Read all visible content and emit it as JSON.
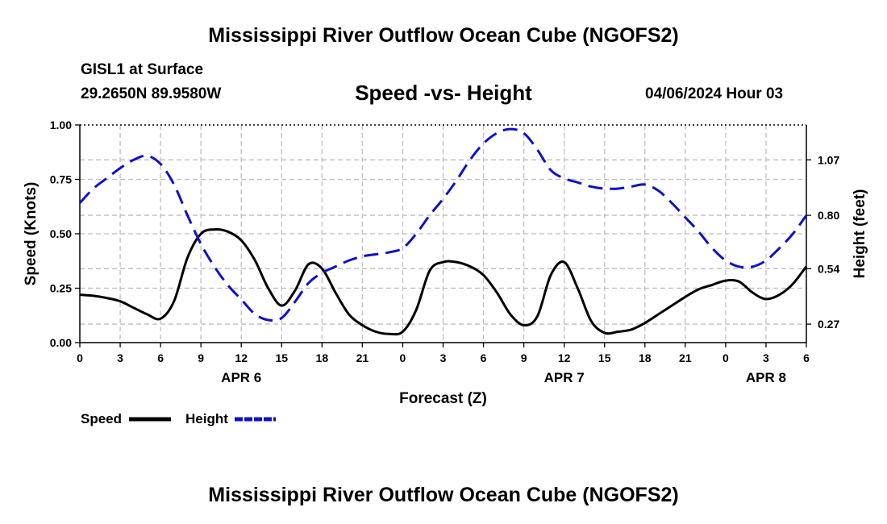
{
  "header": {
    "title": "Mississippi River Outflow Ocean Cube (NGOFS2)",
    "station": "GISL1 at Surface",
    "coordinates": "29.2650N  89.9580W",
    "subtitle": "Speed -vs- Height",
    "datetime": "04/06/2024 Hour 03"
  },
  "footer": {
    "title": "Mississippi River Outflow Ocean Cube (NGOFS2)"
  },
  "chart_data": {
    "type": "line",
    "title": "Speed -vs- Height",
    "xlabel": "Forecast (Z)",
    "ylabel": "Speed (Knots)",
    "y2label": "Height (feet)",
    "xlim": [
      0,
      54
    ],
    "ylim": [
      0,
      1
    ],
    "y2lim": [
      0.18,
      1.24
    ],
    "grid": true,
    "x_ticks": [
      0,
      3,
      6,
      9,
      12,
      15,
      18,
      21,
      24,
      27,
      30,
      33,
      36,
      39,
      42,
      45,
      48,
      51,
      54
    ],
    "x_tick_labels": [
      "0",
      "3",
      "6",
      "9",
      "12",
      "15",
      "18",
      "21",
      "0",
      "3",
      "6",
      "9",
      "12",
      "15",
      "18",
      "21",
      "0",
      "3",
      "6"
    ],
    "date_labels": [
      {
        "x": 12,
        "label": "APR 6"
      },
      {
        "x": 36,
        "label": "APR 7"
      },
      {
        "x": 51,
        "label": "APR 8"
      }
    ],
    "y_ticks": [
      0,
      0.25,
      0.5,
      0.75,
      1.0
    ],
    "y_tick_labels": [
      "0.00",
      "0.25",
      "0.50",
      "0.75",
      "1.00"
    ],
    "y2_ticks": [
      0.27,
      0.54,
      0.8,
      1.07
    ],
    "y2_tick_labels": [
      "0.27",
      "0.54",
      "0.80",
      "1.07"
    ],
    "legend": {
      "position": "bottom-left",
      "speed_label": "Speed",
      "height_label": "Height"
    },
    "series": [
      {
        "name": "Speed",
        "axis": "left",
        "color": "#000000",
        "dash": "solid",
        "x": [
          0,
          1,
          2,
          3,
          4,
          5,
          6,
          7,
          8,
          9,
          10,
          11,
          12,
          13,
          14,
          15,
          16,
          17,
          18,
          19,
          20,
          21,
          22,
          23,
          24,
          25,
          26,
          27,
          28,
          29,
          30,
          31,
          32,
          33,
          34,
          35,
          36,
          37,
          38,
          39,
          40,
          41,
          42,
          43,
          44,
          45,
          46,
          47,
          48,
          49,
          50,
          51,
          52,
          53,
          54
        ],
        "values": [
          0.22,
          0.215,
          0.205,
          0.19,
          0.16,
          0.13,
          0.11,
          0.19,
          0.39,
          0.5,
          0.52,
          0.51,
          0.47,
          0.38,
          0.25,
          0.17,
          0.24,
          0.36,
          0.34,
          0.23,
          0.13,
          0.08,
          0.05,
          0.04,
          0.05,
          0.15,
          0.33,
          0.37,
          0.37,
          0.35,
          0.31,
          0.23,
          0.13,
          0.08,
          0.12,
          0.31,
          0.37,
          0.25,
          0.1,
          0.045,
          0.05,
          0.06,
          0.09,
          0.13,
          0.17,
          0.21,
          0.245,
          0.265,
          0.285,
          0.28,
          0.23,
          0.2,
          0.22,
          0.27,
          0.35
        ]
      },
      {
        "name": "Height",
        "axis": "right",
        "color": "#1010c8",
        "dash": "dashed",
        "x": [
          0,
          1,
          2,
          3,
          4,
          5,
          6,
          7,
          8,
          9,
          10,
          11,
          12,
          13,
          14,
          15,
          16,
          17,
          18,
          19,
          20,
          21,
          22,
          23,
          24,
          25,
          26,
          27,
          28,
          29,
          30,
          31,
          32,
          33,
          34,
          35,
          36,
          37,
          38,
          39,
          40,
          41,
          42,
          43,
          44,
          45,
          46,
          47,
          48,
          49,
          50,
          51,
          52,
          53,
          54
        ],
        "values": [
          0.86,
          0.93,
          0.98,
          1.03,
          1.07,
          1.09,
          1.05,
          0.95,
          0.8,
          0.66,
          0.55,
          0.46,
          0.39,
          0.32,
          0.29,
          0.3,
          0.38,
          0.47,
          0.52,
          0.55,
          0.58,
          0.6,
          0.61,
          0.62,
          0.64,
          0.71,
          0.8,
          0.88,
          0.97,
          1.07,
          1.15,
          1.2,
          1.22,
          1.2,
          1.12,
          1.02,
          0.98,
          0.96,
          0.94,
          0.93,
          0.93,
          0.94,
          0.95,
          0.92,
          0.86,
          0.79,
          0.72,
          0.64,
          0.58,
          0.55,
          0.55,
          0.58,
          0.64,
          0.71,
          0.8
        ]
      }
    ]
  }
}
